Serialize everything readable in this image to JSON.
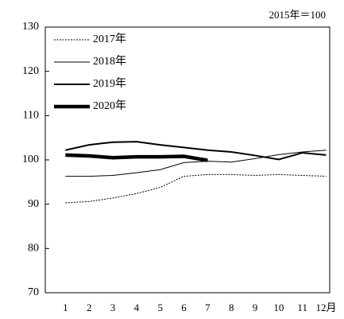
{
  "chart_data": {
    "type": "line",
    "annotation": "2015年＝100",
    "categories": [
      "1",
      "2",
      "3",
      "4",
      "5",
      "6",
      "7",
      "8",
      "9",
      "10",
      "11",
      "12月"
    ],
    "ylim": [
      70,
      130
    ],
    "yticks": [
      70,
      80,
      90,
      100,
      110,
      120,
      130
    ],
    "series": [
      {
        "name": "2017年",
        "color": "#000000",
        "style": "dotted",
        "width": 1,
        "values": [
          90.3,
          90.6,
          91.4,
          92.4,
          93.8,
          96.3,
          96.7,
          96.7,
          96.5,
          96.7,
          96.5,
          96.3
        ]
      },
      {
        "name": "2018年",
        "color": "#000000",
        "style": "solid",
        "width": 1,
        "values": [
          96.3,
          96.3,
          96.5,
          97.1,
          97.8,
          99.4,
          99.7,
          99.5,
          100.3,
          101.2,
          101.8,
          102.2
        ]
      },
      {
        "name": "2019年",
        "color": "#000000",
        "style": "solid",
        "width": 2,
        "values": [
          102.2,
          103.4,
          104.0,
          104.1,
          103.4,
          102.8,
          102.2,
          101.8,
          101.0,
          100.1,
          101.6,
          101.1
        ]
      },
      {
        "name": "2020年",
        "color": "#000000",
        "style": "solid",
        "width": 4.5,
        "values": [
          101.1,
          100.9,
          100.5,
          100.7,
          100.7,
          100.8,
          99.9,
          null,
          null,
          null,
          null,
          null
        ]
      }
    ]
  }
}
